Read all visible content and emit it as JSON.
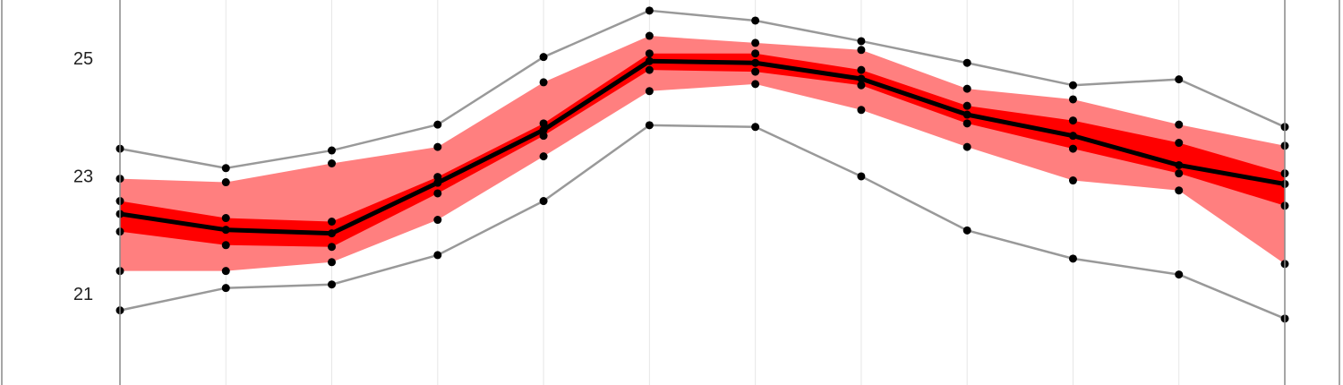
{
  "chart_data": {
    "type": "band-line",
    "categories": [
      null,
      null,
      null,
      null,
      null,
      null,
      null,
      null,
      null,
      null,
      null,
      null
    ],
    "ylim": [
      19.47,
      26.02
    ],
    "yticks": [
      21,
      23,
      25
    ],
    "bands": [
      {
        "color": "#ff7f7f",
        "lower": [
          21.41,
          21.41,
          21.56,
          22.28,
          23.36,
          24.47,
          24.59,
          24.15,
          23.52,
          22.95,
          22.78,
          21.53
        ],
        "upper": [
          22.98,
          22.92,
          23.24,
          23.52,
          24.62,
          25.41,
          25.29,
          25.17,
          24.51,
          24.33,
          23.9,
          23.54
        ]
      },
      {
        "color": "#ff0000",
        "lower": [
          22.08,
          21.85,
          21.82,
          22.73,
          23.71,
          24.83,
          24.8,
          24.57,
          23.92,
          23.49,
          23.07,
          22.52
        ],
        "upper": [
          22.6,
          22.31,
          22.25,
          23.01,
          23.92,
          25.11,
          25.11,
          24.83,
          24.22,
          23.97,
          23.59,
          23.07
        ]
      }
    ],
    "series": [
      {
        "color": "#999999",
        "width": 2.5,
        "values": [
          23.49,
          23.16,
          23.46,
          23.9,
          25.05,
          25.84,
          25.67,
          25.32,
          24.95,
          24.57,
          24.67,
          23.86
        ]
      },
      {
        "color": "#999999",
        "width": 2.5,
        "values": [
          20.74,
          21.12,
          21.18,
          21.68,
          22.6,
          23.89,
          23.86,
          23.02,
          22.1,
          21.62,
          21.35,
          20.6
        ]
      },
      {
        "color": "#000000",
        "width": 5,
        "values": [
          22.38,
          22.11,
          22.05,
          22.91,
          23.81,
          24.98,
          24.95,
          24.68,
          24.07,
          23.71,
          23.21,
          22.89
        ]
      }
    ],
    "marker_color": "#000000"
  }
}
